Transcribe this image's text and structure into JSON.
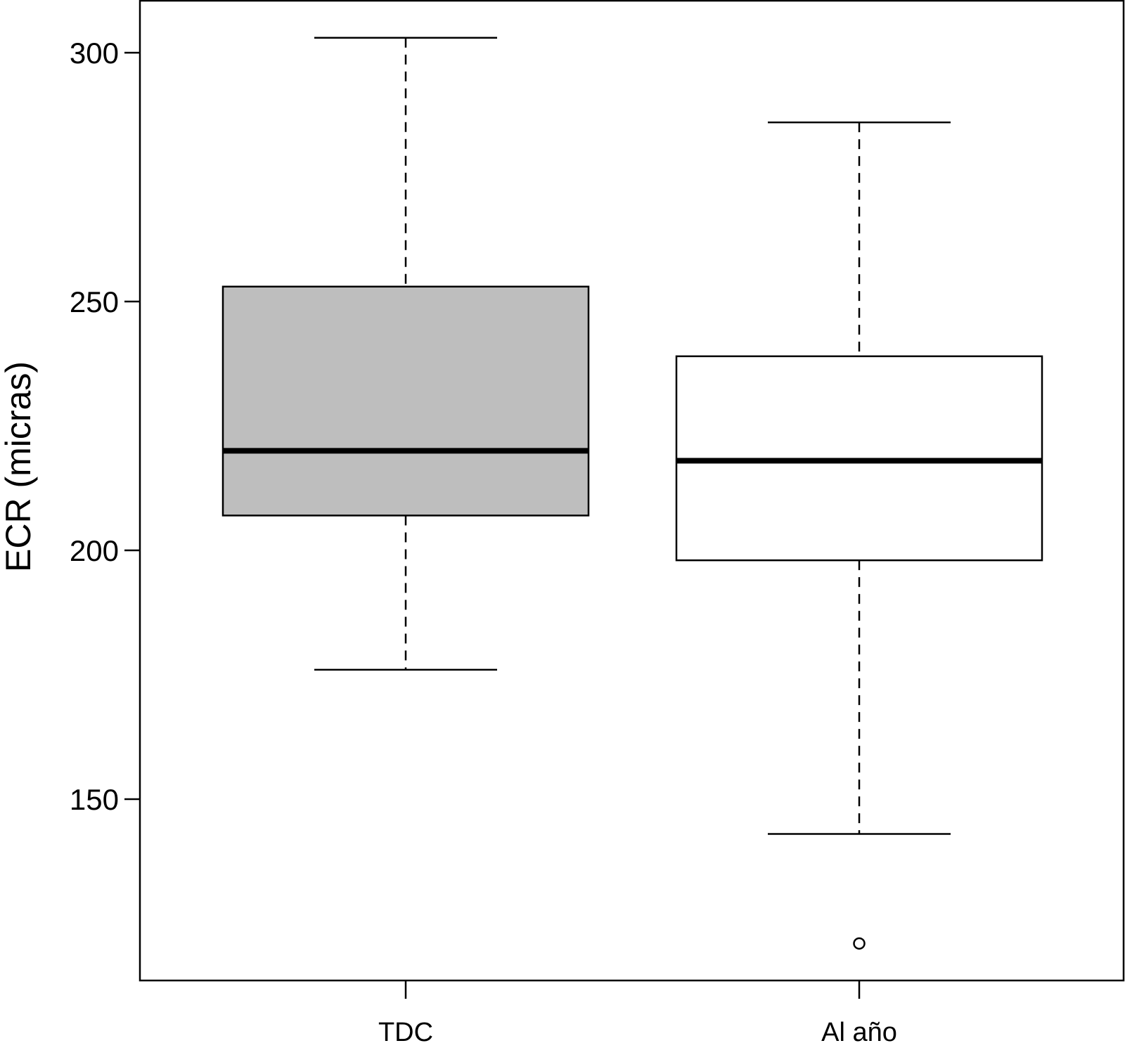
{
  "chart_data": {
    "type": "boxplot",
    "title": "",
    "xlabel": "",
    "ylabel": "ECR (micras)",
    "ylim": [
      113,
      310
    ],
    "yticks": [
      150,
      200,
      250,
      300
    ],
    "grid": false,
    "legend": "none",
    "categories": [
      "TDC",
      "Al año"
    ],
    "boxes": [
      {
        "category": "TDC",
        "whisker_low": 176,
        "q1": 207,
        "median": 220,
        "q3": 253,
        "whisker_high": 303,
        "outliers": [],
        "fill": "#bebebe"
      },
      {
        "category": "Al año",
        "whisker_low": 143,
        "q1": 198,
        "median": 218,
        "q3": 239,
        "whisker_high": 286,
        "outliers": [
          121
        ],
        "fill": "#ffffff"
      }
    ]
  }
}
